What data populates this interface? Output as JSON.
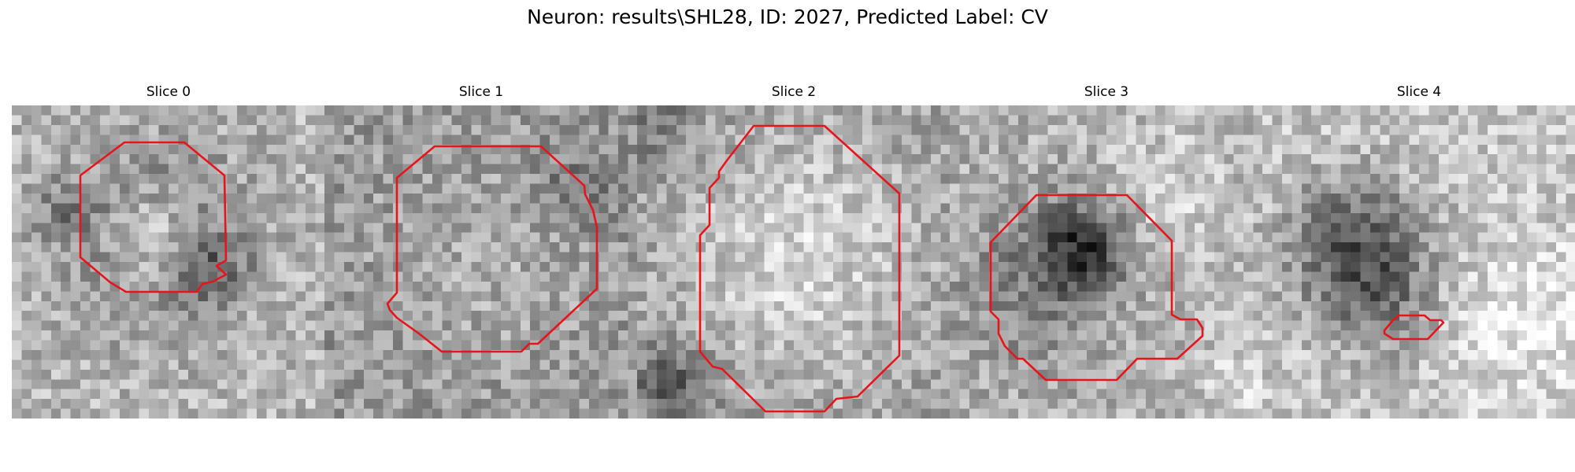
{
  "figure": {
    "suptitle": "Neuron: results\\SHL28, ID: 2027, Predicted Label: CV"
  },
  "colors": {
    "contour": "#e8141c",
    "background": "#ffffff",
    "text": "#000000"
  },
  "panels": [
    {
      "title": "Slice 0"
    },
    {
      "title": "Slice 1"
    },
    {
      "title": "Slice 2"
    },
    {
      "title": "Slice 3"
    },
    {
      "title": "Slice 4"
    }
  ]
}
